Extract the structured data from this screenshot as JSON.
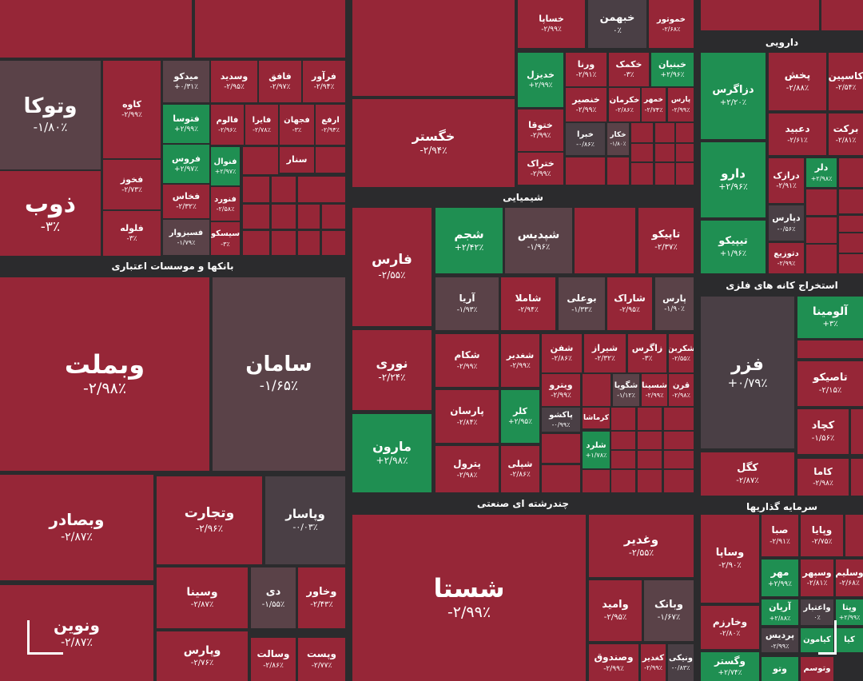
{
  "colors": {
    "red": "#962637",
    "gray": "#5a4248",
    "dgray": "#4a3f45",
    "green": "#1f8f52",
    "bg": "#2b2b2d"
  },
  "sectors": [
    {
      "id": "banks",
      "label": "بانکها و موسسات اعتباری"
    },
    {
      "id": "chem",
      "label": "شیمیایی"
    },
    {
      "id": "pharma",
      "label": "دارویی"
    },
    {
      "id": "mining",
      "label": "استخراج کانه های فلزی"
    },
    {
      "id": "multi",
      "label": "چندرشته ای صنعتی"
    },
    {
      "id": "invest",
      "label": "سرمایه گذاریها"
    }
  ],
  "tiles": [
    {
      "id": "vtoka",
      "name": "وتوکا",
      "change": "-۱/۸۰٪",
      "color": "gray"
    },
    {
      "id": "zob",
      "name": "ذوب",
      "change": "-۳٪",
      "color": "red"
    },
    {
      "id": "kaveh",
      "name": "کاوه",
      "change": "-۲/۹۹٪",
      "color": "red"
    },
    {
      "id": "fakhouz",
      "name": "فخوز",
      "change": "-۲/۷۳٪",
      "color": "red"
    },
    {
      "id": "faloleh",
      "name": "فلوله",
      "change": "-۳٪",
      "color": "red"
    },
    {
      "id": "faravar",
      "name": "فرآور",
      "change": "-۲/۹۴٪",
      "color": "red"
    },
    {
      "id": "fafagh",
      "name": "فافق",
      "change": "-۲/۹۷٪",
      "color": "red"
    },
    {
      "id": "vasdid",
      "name": "وسدید",
      "change": "-۲/۹۵٪",
      "color": "red"
    },
    {
      "id": "midko",
      "name": "میدکو",
      "change": "+۰/۳۱٪",
      "color": "gray"
    },
    {
      "id": "erfa",
      "name": "ارفع",
      "change": "-۲/۹۴٪",
      "color": "red"
    },
    {
      "id": "fjahan",
      "name": "فجهان",
      "change": "-۳٪",
      "color": "red"
    },
    {
      "id": "fayra",
      "name": "فایرا",
      "change": "-۲/۷۸٪",
      "color": "red"
    },
    {
      "id": "falum",
      "name": "فالوم",
      "change": "-۲/۹۶٪",
      "color": "red"
    },
    {
      "id": "fvosa",
      "name": "فتوسا",
      "change": "+۲/۹۹٪",
      "color": "green"
    },
    {
      "id": "foros",
      "name": "فروس",
      "change": "+۲/۹۷٪",
      "color": "green"
    },
    {
      "id": "fnvol",
      "name": "فنوال",
      "change": "+۲/۹۷٪",
      "color": "green"
    },
    {
      "id": "senar",
      "name": "سنار",
      "change": "",
      "color": "red"
    },
    {
      "id": "fkhas",
      "name": "فخاس",
      "change": "-۲/۳۲٪",
      "color": "red"
    },
    {
      "id": "fnvord",
      "name": "فنورد",
      "change": "-۲/۵۸٪",
      "color": "red"
    },
    {
      "id": "fsbzvar",
      "name": "فسبزوار",
      "change": "-۱/۷۹٪",
      "color": "gray"
    },
    {
      "id": "siskoo",
      "name": "سیسکو",
      "change": "-۳٪",
      "color": "red"
    },
    {
      "id": "khesapa",
      "name": "خساپا",
      "change": "-۲/۹۹٪",
      "color": "red"
    },
    {
      "id": "khbahman",
      "name": "خبهمن",
      "change": "۰٪",
      "color": "dgray"
    },
    {
      "id": "khmotor",
      "name": "خموتور",
      "change": "-۲/۶۸٪",
      "color": "red"
    },
    {
      "id": "khgostar",
      "name": "خگستر",
      "change": "-۲/۹۴٪",
      "color": "red"
    },
    {
      "id": "khodzel",
      "name": "خدیزل",
      "change": "+۲/۹۹٪",
      "color": "green"
    },
    {
      "id": "varna",
      "name": "ورنا",
      "change": "-۲/۹۱٪",
      "color": "red"
    },
    {
      "id": "khekmek",
      "name": "خکمک",
      "change": "-۳٪",
      "color": "red"
    },
    {
      "id": "khbnian",
      "name": "خبنیان",
      "change": "+۲/۹۶٪",
      "color": "green"
    },
    {
      "id": "khansir",
      "name": "خنصیر",
      "change": "-۲/۹۹٪",
      "color": "red"
    },
    {
      "id": "khkarman",
      "name": "خکرمان",
      "change": "-۲/۸۶٪",
      "color": "red"
    },
    {
      "id": "khmehr",
      "name": "خمهر",
      "change": "-۲/۷۴٪",
      "color": "red"
    },
    {
      "id": "pars",
      "name": "پارس",
      "change": "-۲/۹۹٪",
      "color": "red"
    },
    {
      "id": "khtoga",
      "name": "ختوقا",
      "change": "-۲/۹۹٪",
      "color": "red"
    },
    {
      "id": "khbra",
      "name": "خبرا",
      "change": "-۰/۸۶٪",
      "color": "dgray"
    },
    {
      "id": "khkar",
      "name": "خکار",
      "change": "-۱/۸۰٪",
      "color": "gray"
    },
    {
      "id": "khtrak",
      "name": "ختراک",
      "change": "-۲/۹۹٪",
      "color": "red"
    },
    {
      "id": "shejam",
      "name": "شجم",
      "change": "+۲/۴۲٪",
      "color": "green"
    },
    {
      "id": "shepdis",
      "name": "شپدیس",
      "change": "-۱/۹۶٪",
      "color": "gray"
    },
    {
      "id": "tapiko",
      "name": "تاپیکو",
      "change": "-۲/۳۷٪",
      "color": "red"
    },
    {
      "id": "fars",
      "name": "فارس",
      "change": "-۲/۵۵٪",
      "color": "red"
    },
    {
      "id": "noori",
      "name": "نوری",
      "change": "-۲/۲۴٪",
      "color": "red"
    },
    {
      "id": "maroon",
      "name": "مارون",
      "change": "+۲/۹۸٪",
      "color": "green"
    },
    {
      "id": "arya",
      "name": "آریا",
      "change": "-۱/۹۳٪",
      "color": "gray"
    },
    {
      "id": "shamla",
      "name": "شاملا",
      "change": "-۲/۹۴٪",
      "color": "red"
    },
    {
      "id": "boali",
      "name": "بوعلی",
      "change": "-۱/۳۳٪",
      "color": "gray"
    },
    {
      "id": "sharak",
      "name": "شاراک",
      "change": "-۲/۹۵٪",
      "color": "red"
    },
    {
      "id": "parsch",
      "name": "پارس",
      "change": "-۱/۹۰٪",
      "color": "gray"
    },
    {
      "id": "shekam",
      "name": "شکام",
      "change": "-۲/۹۹٪",
      "color": "red"
    },
    {
      "id": "shghadir",
      "name": "شغدیر",
      "change": "-۲/۹۹٪",
      "color": "red"
    },
    {
      "id": "shefan",
      "name": "شفن",
      "change": "-۲/۸۶٪",
      "color": "red"
    },
    {
      "id": "shiraz",
      "name": "شیراز",
      "change": "-۲/۳۲٪",
      "color": "red"
    },
    {
      "id": "zagros",
      "name": "زاگرس",
      "change": "-۳٪",
      "color": "red"
    },
    {
      "id": "shekarban",
      "name": "شکربن",
      "change": "-۲/۵۵٪",
      "color": "red"
    },
    {
      "id": "vitro",
      "name": "ویترو",
      "change": "-۲/۹۹٪",
      "color": "red"
    },
    {
      "id": "shegoya",
      "name": "شگویا",
      "change": "-۱/۱۲٪",
      "color": "gray"
    },
    {
      "id": "shesina",
      "name": "شسینا",
      "change": "-۲/۹۹٪",
      "color": "red"
    },
    {
      "id": "qaran",
      "name": "قرن",
      "change": "-۲/۹۸٪",
      "color": "red"
    },
    {
      "id": "parsan",
      "name": "پارسان",
      "change": "-۲/۸۴٪",
      "color": "red"
    },
    {
      "id": "kalar",
      "name": "کلر",
      "change": "+۲/۹۵٪",
      "color": "green"
    },
    {
      "id": "pakshu",
      "name": "پاکشو",
      "change": "-۰/۹۹٪",
      "color": "dgray"
    },
    {
      "id": "kermasha",
      "name": "کرماشا",
      "change": "",
      "color": "red"
    },
    {
      "id": "sherad",
      "name": "شلرد",
      "change": "+۱/۷۸٪",
      "color": "green"
    },
    {
      "id": "petrol",
      "name": "پترول",
      "change": "-۲/۹۸٪",
      "color": "red"
    },
    {
      "id": "shepli",
      "name": "شپلی",
      "change": "-۲/۸۶٪",
      "color": "red"
    },
    {
      "id": "dzagros",
      "name": "دزاگرس",
      "change": "+۲/۲۰٪",
      "color": "green"
    },
    {
      "id": "pakhsh",
      "name": "پخش",
      "change": "-۲/۸۸٪",
      "color": "red"
    },
    {
      "id": "kasmin",
      "name": "کاسپین",
      "change": "-۲/۵۴٪",
      "color": "red"
    },
    {
      "id": "dabid",
      "name": "دعبید",
      "change": "-۲/۶۱٪",
      "color": "red"
    },
    {
      "id": "barakat",
      "name": "برکت",
      "change": "-۲/۸۱٪",
      "color": "red"
    },
    {
      "id": "daro",
      "name": "دارو",
      "change": "+۲/۹۶٪",
      "color": "green"
    },
    {
      "id": "drazak",
      "name": "درازک",
      "change": "-۲/۹۱٪",
      "color": "red"
    },
    {
      "id": "dlar",
      "name": "دلر",
      "change": "+۲/۹۸٪",
      "color": "green"
    },
    {
      "id": "dpars",
      "name": "دپارس",
      "change": "-۰/۵۶٪",
      "color": "dgray"
    },
    {
      "id": "tipiko",
      "name": "تیپیکو",
      "change": "+۱/۹۶٪",
      "color": "green"
    },
    {
      "id": "dtozi",
      "name": "دتوزیع",
      "change": "-۲/۹۹٪",
      "color": "red"
    },
    {
      "id": "vbmellat",
      "name": "وبملت",
      "change": "-۲/۹۸٪",
      "color": "red"
    },
    {
      "id": "saman",
      "name": "سامان",
      "change": "-۱/۶۵٪",
      "color": "gray"
    },
    {
      "id": "vbsader",
      "name": "وبصادر",
      "change": "-۲/۸۷٪",
      "color": "red"
    },
    {
      "id": "vtejarat",
      "name": "وتجارت",
      "change": "-۲/۹۶٪",
      "color": "red"
    },
    {
      "id": "vpasar",
      "name": "وپاسار",
      "change": "-۰/۰۳٪",
      "color": "dgray"
    },
    {
      "id": "vnovin",
      "name": "ونوین",
      "change": "-۲/۸۷٪",
      "color": "red"
    },
    {
      "id": "vsina",
      "name": "وسینا",
      "change": "-۲/۸۷٪",
      "color": "red"
    },
    {
      "id": "day",
      "name": "دی",
      "change": "-۱/۵۵٪",
      "color": "gray"
    },
    {
      "id": "vkhavar",
      "name": "وخاور",
      "change": "-۲/۴۳٪",
      "color": "red"
    },
    {
      "id": "vpars",
      "name": "وپارس",
      "change": "-۲/۷۶٪",
      "color": "red"
    },
    {
      "id": "vsalat",
      "name": "وسالت",
      "change": "-۲/۸۶٪",
      "color": "red"
    },
    {
      "id": "vpost",
      "name": "وپست",
      "change": "-۲/۷۷٪",
      "color": "red"
    },
    {
      "id": "fezar",
      "name": "فزر",
      "change": "+۰/۷۹٪",
      "color": "dgray"
    },
    {
      "id": "alumina",
      "name": "آلومینا",
      "change": "+۳٪",
      "color": "green"
    },
    {
      "id": "tasiko",
      "name": "تاصیکو",
      "change": "-۲/۱۵٪",
      "color": "red"
    },
    {
      "id": "kchad",
      "name": "کچاد",
      "change": "-۱/۵۶٪",
      "color": "red"
    },
    {
      "id": "kgol",
      "name": "کگل",
      "change": "-۲/۸۷٪",
      "color": "red"
    },
    {
      "id": "kama",
      "name": "کاما",
      "change": "-۲/۹۸٪",
      "color": "red"
    },
    {
      "id": "shasta",
      "name": "شستا",
      "change": "-۲/۹۹٪",
      "color": "red"
    },
    {
      "id": "vghadir",
      "name": "وغدیر",
      "change": "-۲/۵۵٪",
      "color": "red"
    },
    {
      "id": "vamid",
      "name": "وامید",
      "change": "-۲/۹۵٪",
      "color": "red"
    },
    {
      "id": "vbank",
      "name": "وبانک",
      "change": "-۱/۶۷٪",
      "color": "gray"
    },
    {
      "id": "vsandoq",
      "name": "وصندوق",
      "change": "-۲/۹۹٪",
      "color": "red"
    },
    {
      "id": "kadir",
      "name": "کغدیر",
      "change": "-۲/۹۹٪",
      "color": "red"
    },
    {
      "id": "vniki",
      "name": "ونیکی",
      "change": "-۰/۸۳٪",
      "color": "dgray"
    },
    {
      "id": "vsapa",
      "name": "وساپا",
      "change": "-۲/۹۰٪",
      "color": "red"
    },
    {
      "id": "saba",
      "name": "صبا",
      "change": "-۲/۹۱٪",
      "color": "red"
    },
    {
      "id": "vpaya",
      "name": "وپایا",
      "change": "-۲/۷۵٪",
      "color": "red"
    },
    {
      "id": "vkhrazm",
      "name": "وخارزم",
      "change": "-۲/۸۰٪",
      "color": "red"
    },
    {
      "id": "mehr",
      "name": "مهر",
      "change": "+۲/۹۹٪",
      "color": "green"
    },
    {
      "id": "vsepehr",
      "name": "وسپهر",
      "change": "-۲/۸۱٪",
      "color": "red"
    },
    {
      "id": "vsalim",
      "name": "وسلیم",
      "change": "-۲/۶۸٪",
      "color": "red"
    },
    {
      "id": "arian",
      "name": "آریان",
      "change": "+۲/۸۸٪",
      "color": "green"
    },
    {
      "id": "vetebar",
      "name": "واعتبار",
      "change": "۰٪",
      "color": "dgray"
    },
    {
      "id": "vpeta",
      "name": "وپتا",
      "change": "+۲/۹۹٪",
      "color": "green"
    },
    {
      "id": "vgostar",
      "name": "وگستر",
      "change": "+۲/۷۴٪",
      "color": "green"
    },
    {
      "id": "pardis",
      "name": "پردیس",
      "change": "-۲/۹۹٪",
      "color": "dgray"
    },
    {
      "id": "kaiman",
      "name": "کیامون",
      "change": "",
      "color": "green"
    },
    {
      "id": "vtoo",
      "name": "وتو",
      "change": "",
      "color": "green"
    },
    {
      "id": "vtousam",
      "name": "وتوسم",
      "change": "",
      "color": "red"
    },
    {
      "id": "vkiya",
      "name": "کیا",
      "change": "",
      "color": "green"
    }
  ],
  "blanks": [
    {
      "color": "red"
    }
  ]
}
